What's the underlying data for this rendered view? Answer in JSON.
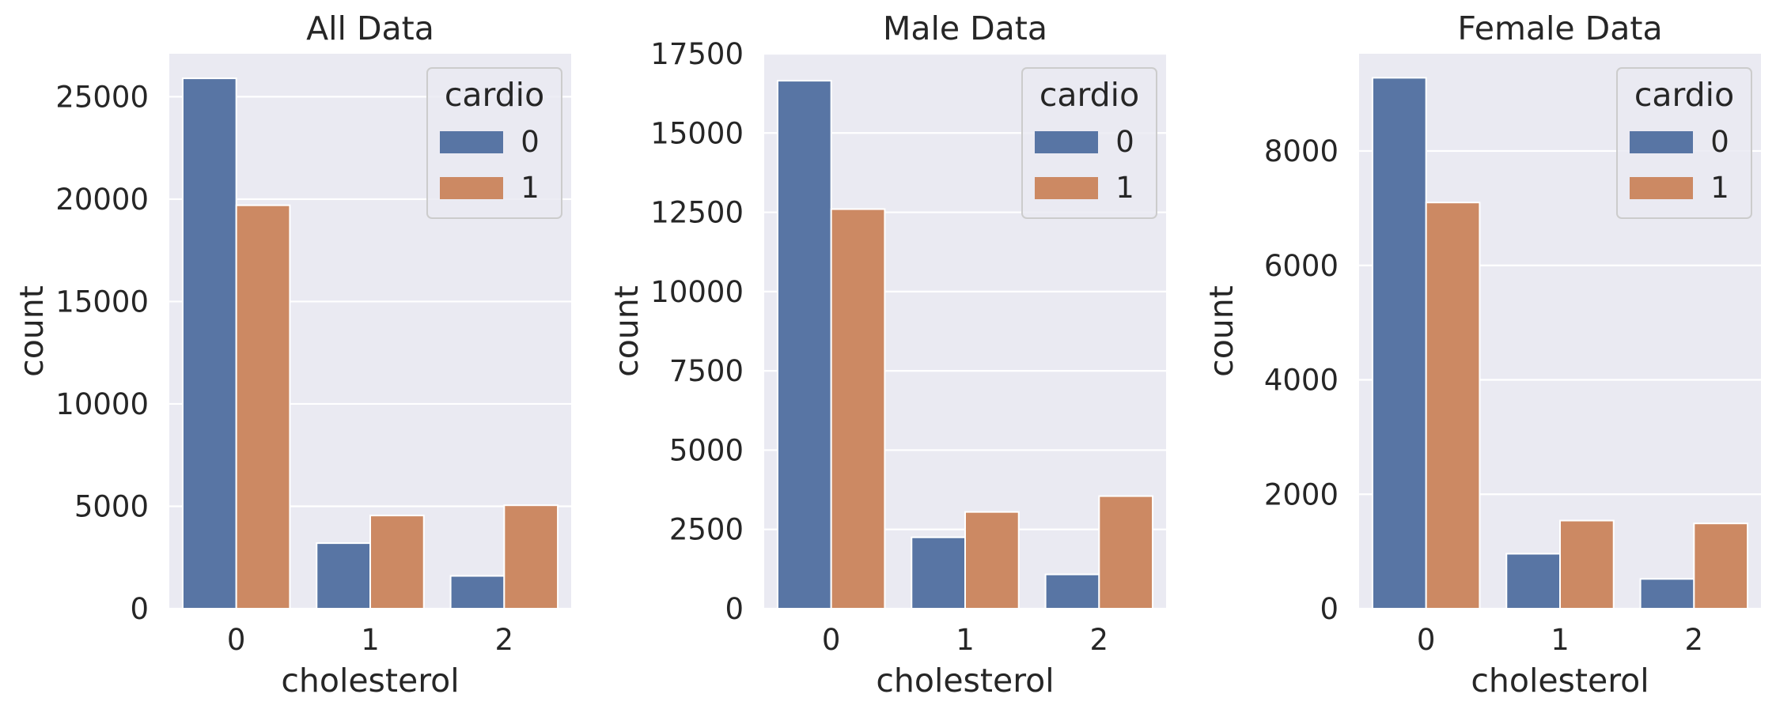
{
  "colors": {
    "background": "#ffffff",
    "plot_background": "#eaeaf2",
    "grid": "#ffffff",
    "text": "#262626",
    "series": [
      "#5875a4",
      "#cc8963"
    ]
  },
  "chart_data": [
    {
      "type": "bar",
      "title": "All Data",
      "xlabel": "cholesterol",
      "ylabel": "count",
      "categories": [
        "0",
        "1",
        "2"
      ],
      "ylim": [
        0,
        27100
      ],
      "yticks": [
        0,
        5000,
        10000,
        15000,
        20000,
        25000
      ],
      "ytick_labels": [
        "0",
        "5000",
        "10000",
        "15000",
        "20000",
        "25000"
      ],
      "grid": true,
      "legend": {
        "title": "cardio",
        "placement": "top-right"
      },
      "series": [
        {
          "name": "0",
          "values": [
            25900,
            3200,
            1600
          ]
        },
        {
          "name": "1",
          "values": [
            19700,
            4550,
            5050
          ]
        }
      ]
    },
    {
      "type": "bar",
      "title": "Male Data",
      "xlabel": "cholesterol",
      "ylabel": "count",
      "categories": [
        "0",
        "1",
        "2"
      ],
      "ylim": [
        0,
        17500
      ],
      "yticks": [
        0,
        2500,
        5000,
        7500,
        10000,
        12500,
        15000,
        17500
      ],
      "ytick_labels": [
        "0",
        "2500",
        "5000",
        "7500",
        "10000",
        "12500",
        "15000",
        "17500"
      ],
      "grid": true,
      "legend": {
        "title": "cardio",
        "placement": "top-right"
      },
      "series": [
        {
          "name": "0",
          "values": [
            16650,
            2250,
            1080
          ]
        },
        {
          "name": "1",
          "values": [
            12600,
            3050,
            3550
          ]
        }
      ]
    },
    {
      "type": "bar",
      "title": "Female Data",
      "xlabel": "cholesterol",
      "ylabel": "count",
      "categories": [
        "0",
        "1",
        "2"
      ],
      "ylim": [
        0,
        9700
      ],
      "yticks": [
        0,
        2000,
        4000,
        6000,
        8000
      ],
      "ytick_labels": [
        "0",
        "2000",
        "4000",
        "6000",
        "8000"
      ],
      "grid": true,
      "legend": {
        "title": "cardio",
        "placement": "top-right"
      },
      "series": [
        {
          "name": "0",
          "values": [
            9280,
            960,
            520
          ]
        },
        {
          "name": "1",
          "values": [
            7100,
            1540,
            1490
          ]
        }
      ]
    }
  ]
}
